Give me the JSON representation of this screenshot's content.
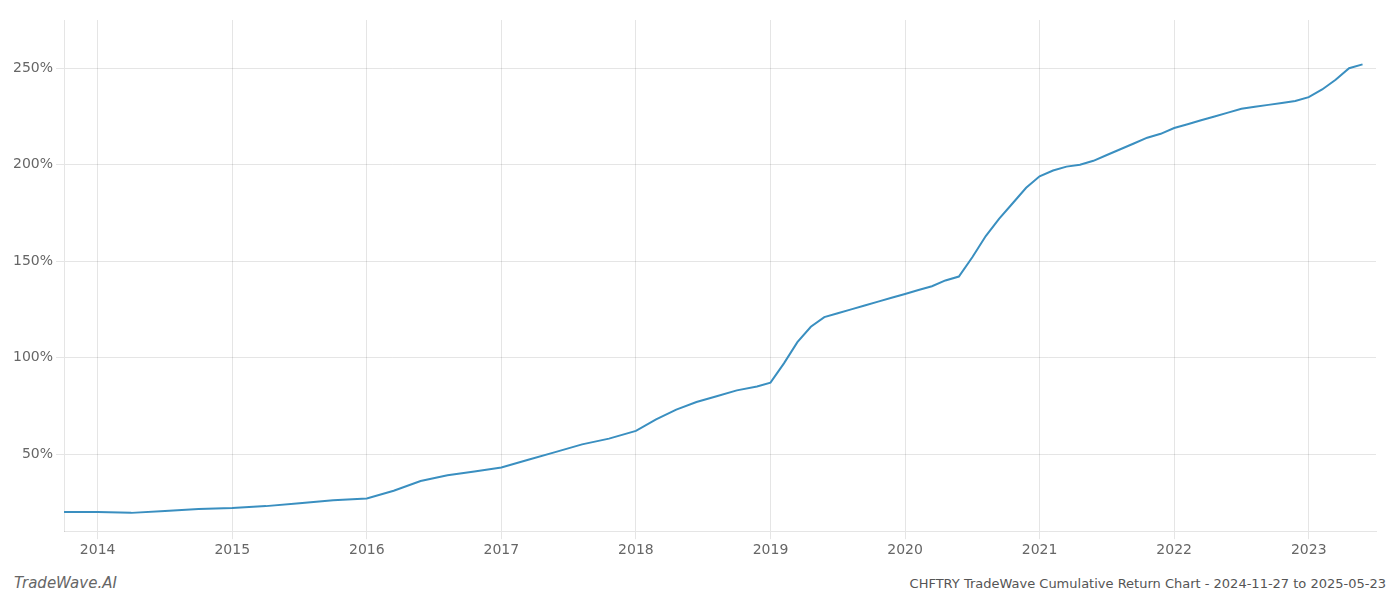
{
  "chart_data": {
    "type": "line",
    "title": "CHFTRY TradeWave Cumulative Return Chart - 2024-11-27 to 2025-05-23",
    "annotations": [
      "TradeWave.AI"
    ],
    "color": "#3a8fc0",
    "grid": true,
    "xlim": [
      2013.75,
      2023.5
    ],
    "xticks": [
      2014,
      2015,
      2016,
      2017,
      2018,
      2019,
      2020,
      2021,
      2022,
      2023
    ],
    "ylim": [
      10,
      275
    ],
    "yticks": [
      {
        "value": 50,
        "label": "50%"
      },
      {
        "value": 100,
        "label": "100%"
      },
      {
        "value": 150,
        "label": "150%"
      },
      {
        "value": 200,
        "label": "200%"
      },
      {
        "value": 250,
        "label": "250%"
      }
    ],
    "x": [
      2013.75,
      2014.0,
      2014.25,
      2014.5,
      2014.75,
      2015.0,
      2015.25,
      2015.5,
      2015.75,
      2016.0,
      2016.2,
      2016.4,
      2016.6,
      2016.8,
      2017.0,
      2017.2,
      2017.4,
      2017.6,
      2017.8,
      2018.0,
      2018.15,
      2018.3,
      2018.45,
      2018.6,
      2018.75,
      2018.9,
      2019.0,
      2019.1,
      2019.2,
      2019.3,
      2019.4,
      2019.5,
      2019.6,
      2019.7,
      2019.8,
      2019.9,
      2020.0,
      2020.1,
      2020.2,
      2020.3,
      2020.4,
      2020.5,
      2020.6,
      2020.7,
      2020.8,
      2020.9,
      2021.0,
      2021.1,
      2021.2,
      2021.3,
      2021.4,
      2021.5,
      2021.6,
      2021.7,
      2021.8,
      2021.9,
      2022.0,
      2022.1,
      2022.2,
      2022.3,
      2022.4,
      2022.5,
      2022.6,
      2022.7,
      2022.8,
      2022.9,
      2023.0,
      2023.1,
      2023.2,
      2023.3,
      2023.4
    ],
    "values": [
      20,
      20,
      19.5,
      20.5,
      21.5,
      22,
      23,
      24.5,
      26,
      27,
      31,
      36,
      39,
      41,
      43,
      47,
      51,
      55,
      58,
      62,
      68,
      73,
      77,
      80,
      83,
      85,
      87,
      97,
      108,
      116,
      121,
      123,
      125,
      127,
      129,
      131,
      133,
      135,
      137,
      140,
      142,
      152,
      163,
      172,
      180,
      188,
      194,
      197,
      199,
      200,
      202,
      205,
      208,
      211,
      214,
      216,
      219,
      221,
      223,
      225,
      227,
      229,
      230,
      231,
      232,
      233,
      235,
      239,
      244,
      250,
      252
    ]
  }
}
